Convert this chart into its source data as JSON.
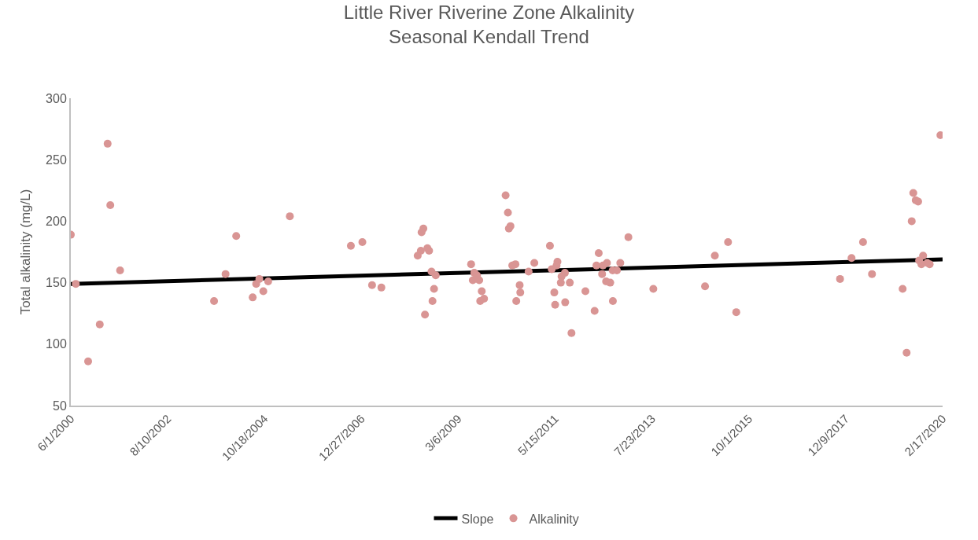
{
  "chart_data": {
    "type": "scatter",
    "title": "Little River Riverine Zone Alkalinity",
    "subtitle": "Seasonal Kendall Trend",
    "ylabel": "Total alkalinity (mg/L)",
    "xlim": [
      "2000-06-01",
      "2020-02-17"
    ],
    "xticks": [
      {
        "value": "2000-06-01",
        "label": "6/1/2000"
      },
      {
        "value": "2002-08-10",
        "label": "8/10/2002"
      },
      {
        "value": "2004-10-18",
        "label": "10/18/2004"
      },
      {
        "value": "2006-12-27",
        "label": "12/27/2006"
      },
      {
        "value": "2009-03-06",
        "label": "3/6/2009"
      },
      {
        "value": "2011-05-15",
        "label": "5/15/2011"
      },
      {
        "value": "2013-07-23",
        "label": "7/23/2013"
      },
      {
        "value": "2015-10-01",
        "label": "10/1/2015"
      },
      {
        "value": "2017-12-09",
        "label": "12/9/2017"
      },
      {
        "value": "2020-02-17",
        "label": "2/17/2020"
      }
    ],
    "ylim": [
      50,
      300
    ],
    "yticks": [
      50,
      100,
      150,
      200,
      250,
      300
    ],
    "grid": false,
    "legend": "bottom",
    "series": [
      {
        "name": "Slope",
        "type": "line",
        "color": "#000000",
        "line_style": "solid",
        "marker": "none",
        "x": [
          "2000-06-01",
          "2020-02-17"
        ],
        "values": [
          149,
          169
        ]
      },
      {
        "name": "Alkalinity",
        "color": "#d99594",
        "marker": "circle",
        "x": [
          "2000-06-01",
          "2000-07-12",
          "2000-10-22",
          "2001-01-26",
          "2001-04-01",
          "2001-04-23",
          "2001-07-13",
          "2003-08-28",
          "2003-12-01",
          "2004-02-27",
          "2004-07-12",
          "2004-08-10",
          "2004-09-05",
          "2004-10-08",
          "2004-11-17",
          "2005-05-15",
          "2006-10-01",
          "2007-01-04",
          "2007-03-25",
          "2007-06-10",
          "2008-05-22",
          "2008-05-07",
          "2008-05-01",
          "2008-04-05",
          "2008-07-08",
          "2008-06-24",
          "2008-07-28",
          "2008-09-01",
          "2008-08-18",
          "2008-08-05",
          "2008-06-04",
          "2009-06-20",
          "2009-07-16",
          "2009-08-07",
          "2009-07-04",
          "2009-08-26",
          "2009-09-16",
          "2009-10-05",
          "2009-09-03",
          "2010-04-01",
          "2010-04-20",
          "2010-05-11",
          "2010-04-28",
          "2010-06-21",
          "2010-05-26",
          "2010-07-26",
          "2010-07-31",
          "2010-06-28",
          "2010-10-08",
          "2010-11-24",
          "2011-04-02",
          "2011-04-17",
          "2011-06-03",
          "2011-05-27",
          "2011-05-08",
          "2011-05-15",
          "2011-08-04",
          "2011-07-07",
          "2011-07-01",
          "2011-09-13",
          "2011-08-06",
          "2011-09-27",
          "2012-01-20",
          "2012-04-05",
          "2012-05-09",
          "2012-04-20",
          "2012-06-13",
          "2012-07-16",
          "2012-06-06",
          "2012-07-09",
          "2012-08-12",
          "2012-09-01",
          "2012-10-06",
          "2012-11-03",
          "2012-09-03",
          "2013-01-09",
          "2013-08-03",
          "2014-10-04",
          "2014-12-24",
          "2015-04-12",
          "2015-06-19",
          "2017-10-23",
          "2018-01-26",
          "2018-05-01",
          "2018-07-14",
          "2019-03-24",
          "2019-04-26",
          "2019-06-07",
          "2019-06-20",
          "2019-07-10",
          "2019-07-30",
          "2019-09-09",
          "2019-08-07",
          "2019-10-13",
          "2019-08-26",
          "2019-11-02",
          "2020-01-30"
        ],
        "values": [
          189,
          149,
          86,
          116,
          263,
          213,
          160,
          135,
          157,
          188,
          138,
          149,
          153,
          143,
          151,
          204,
          180,
          183,
          148,
          146,
          194,
          191,
          176,
          172,
          176,
          178,
          159,
          156,
          145,
          135,
          124,
          165,
          158,
          156,
          152,
          152,
          143,
          137,
          135,
          221,
          207,
          196,
          194,
          165,
          164,
          148,
          142,
          135,
          159,
          166,
          180,
          161,
          167,
          164,
          142,
          132,
          158,
          155,
          150,
          150,
          134,
          109,
          143,
          127,
          174,
          164,
          164,
          166,
          157,
          151,
          150,
          160,
          160,
          166,
          135,
          187,
          145,
          147,
          172,
          183,
          126,
          153,
          170,
          183,
          157,
          145,
          93,
          200,
          223,
          217,
          216,
          172,
          168,
          166,
          165,
          165,
          270
        ]
      }
    ]
  }
}
